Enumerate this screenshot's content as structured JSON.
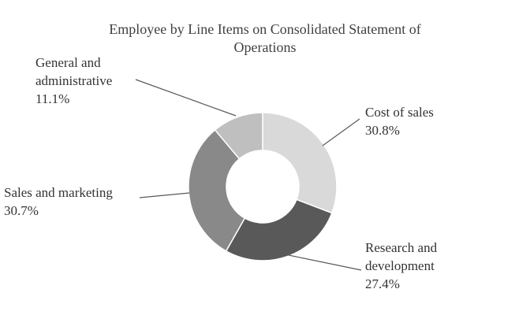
{
  "title_lines": [
    "Employee by Line Items on Consolidated Statement of",
    "Operations"
  ],
  "chart_data": {
    "type": "pie",
    "donut": true,
    "inner_radius_ratio": 0.49,
    "title": "Employee by Line Items on Consolidated Statement of Operations",
    "categories": [
      "Cost of sales",
      "Research and development",
      "Sales and marketing",
      "General and administrative"
    ],
    "values": [
      30.8,
      27.4,
      30.7,
      11.1
    ],
    "value_labels": [
      "30.8%",
      "27.4%",
      "30.7%",
      "11.1%"
    ],
    "colors": [
      "#d9d9d9",
      "#595959",
      "#898989",
      "#bfbfbf"
    ],
    "slice_ids": [
      "cost-of-sales",
      "research-and-development",
      "sales-and-marketing",
      "general-and-administrative"
    ],
    "start_angle_deg": 0,
    "direction": "clockwise",
    "legend_position": "none",
    "label_style": "callouts-with-leader-lines",
    "background": "#ffffff"
  },
  "callouts": [
    {
      "id": "cost-of-sales",
      "lines": [
        "Cost of sales",
        "30.8%"
      ]
    },
    {
      "id": "research-and-development",
      "lines": [
        "Research and",
        "development",
        "27.4%"
      ]
    },
    {
      "id": "sales-and-marketing",
      "lines": [
        "Sales and marketing",
        "30.7%"
      ]
    },
    {
      "id": "general-and-administrative",
      "lines": [
        "General and",
        "administrative",
        "11.1%"
      ]
    }
  ]
}
